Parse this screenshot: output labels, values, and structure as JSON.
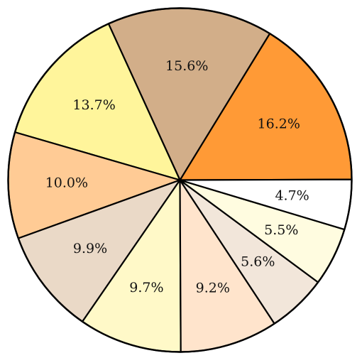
{
  "chart_data": {
    "type": "pie",
    "title": "",
    "start_angle_deg": 0.2,
    "direction": "counterclockwise",
    "slices": [
      {
        "label": "16.2%",
        "value": 16.2,
        "color": "#FF9A36"
      },
      {
        "label": "15.6%",
        "value": 15.6,
        "color": "#D2AE89"
      },
      {
        "label": "13.7%",
        "value": 13.7,
        "color": "#FFF59B"
      },
      {
        "label": "10.0%",
        "value": 10.0,
        "color": "#FFCB95"
      },
      {
        "label": "9.9%",
        "value": 9.9,
        "color": "#EAD9C7"
      },
      {
        "label": "9.7%",
        "value": 9.7,
        "color": "#FFF9C8"
      },
      {
        "label": "9.2%",
        "value": 9.2,
        "color": "#FFE4CC"
      },
      {
        "label": "5.6%",
        "value": 5.6,
        "color": "#F2E6DA"
      },
      {
        "label": "5.5%",
        "value": 5.5,
        "color": "#FFFCE0"
      },
      {
        "label": "4.7%",
        "value": 4.7,
        "color": "#FFFFFF"
      }
    ]
  }
}
